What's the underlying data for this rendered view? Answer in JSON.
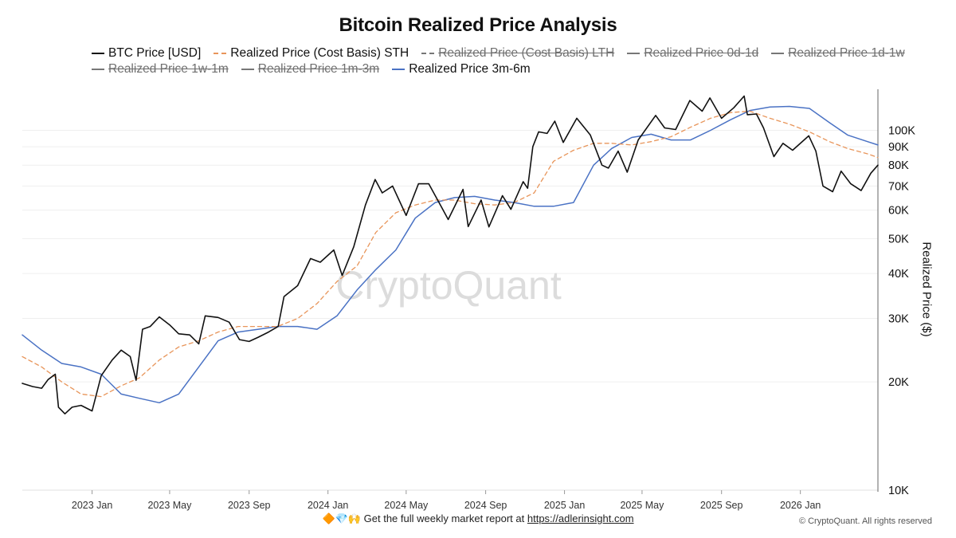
{
  "chart_data": {
    "type": "line",
    "title": "Bitcoin Realized Price Analysis",
    "ylabel": "Realized Price ($)",
    "yscale": "log",
    "ylim": [
      10000,
      130000
    ],
    "x_range": [
      "2022-09-15",
      "2026-03-05"
    ],
    "x_ticks": [
      {
        "date": "2023-01-01",
        "label": "2023 Jan"
      },
      {
        "date": "2023-05-01",
        "label": "2023 May"
      },
      {
        "date": "2023-09-01",
        "label": "2023 Sep"
      },
      {
        "date": "2024-01-01",
        "label": "2024 Jan"
      },
      {
        "date": "2024-05-01",
        "label": "2024 May"
      },
      {
        "date": "2024-09-01",
        "label": "2024 Sep"
      },
      {
        "date": "2025-01-01",
        "label": "2025 Jan"
      },
      {
        "date": "2025-05-01",
        "label": "2025 May"
      },
      {
        "date": "2025-09-01",
        "label": "2025 Sep"
      },
      {
        "date": "2026-01-01",
        "label": "2026 Jan"
      }
    ],
    "y_ticks": [
      {
        "value": 10000,
        "label": "10K"
      },
      {
        "value": 20000,
        "label": "20K"
      },
      {
        "value": 30000,
        "label": "30K"
      },
      {
        "value": 40000,
        "label": "40K"
      },
      {
        "value": 50000,
        "label": "50K"
      },
      {
        "value": 60000,
        "label": "60K"
      },
      {
        "value": 70000,
        "label": "70K"
      },
      {
        "value": 80000,
        "label": "80K"
      },
      {
        "value": 90000,
        "label": "90K"
      },
      {
        "value": 100000,
        "label": "100K"
      }
    ],
    "legend": [
      {
        "name": "BTC Price [USD]",
        "color": "#111111",
        "style": "solid",
        "visible": true
      },
      {
        "name": "Realized Price (Cost Basis) STH",
        "color": "#e8955a",
        "style": "dashed",
        "visible": true
      },
      {
        "name": "Realized Price (Cost Basis) LTH",
        "color": "#777777",
        "style": "dashed",
        "visible": false
      },
      {
        "name": "Realized Price 0d-1d",
        "color": "#777777",
        "style": "solid",
        "visible": false
      },
      {
        "name": "Realized Price 1d-1w",
        "color": "#777777",
        "style": "solid",
        "visible": false
      },
      {
        "name": "Realized Price 1w-1m",
        "color": "#777777",
        "style": "solid",
        "visible": false
      },
      {
        "name": "Realized Price 1m-3m",
        "color": "#777777",
        "style": "solid",
        "visible": false
      },
      {
        "name": "Realized Price 3m-6m",
        "color": "#4a72c4",
        "style": "solid",
        "visible": true
      }
    ],
    "series": [
      {
        "name": "BTC Price [USD]",
        "color": "#111111",
        "points": [
          [
            "2022-09-15",
            19800
          ],
          [
            "2022-10-01",
            19400
          ],
          [
            "2022-10-15",
            19200
          ],
          [
            "2022-10-25",
            20300
          ],
          [
            "2022-11-05",
            21000
          ],
          [
            "2022-11-10",
            17000
          ],
          [
            "2022-11-20",
            16300
          ],
          [
            "2022-12-01",
            17000
          ],
          [
            "2022-12-15",
            17200
          ],
          [
            "2023-01-01",
            16600
          ],
          [
            "2023-01-15",
            20800
          ],
          [
            "2023-02-01",
            23000
          ],
          [
            "2023-02-15",
            24500
          ],
          [
            "2023-03-01",
            23500
          ],
          [
            "2023-03-10",
            20200
          ],
          [
            "2023-03-20",
            28000
          ],
          [
            "2023-04-01",
            28500
          ],
          [
            "2023-04-15",
            30300
          ],
          [
            "2023-05-01",
            28800
          ],
          [
            "2023-05-15",
            27200
          ],
          [
            "2023-06-01",
            27000
          ],
          [
            "2023-06-15",
            25500
          ],
          [
            "2023-06-25",
            30500
          ],
          [
            "2023-07-15",
            30200
          ],
          [
            "2023-08-01",
            29300
          ],
          [
            "2023-08-17",
            26200
          ],
          [
            "2023-09-01",
            25900
          ],
          [
            "2023-09-15",
            26600
          ],
          [
            "2023-10-01",
            27500
          ],
          [
            "2023-10-16",
            28500
          ],
          [
            "2023-10-25",
            34500
          ],
          [
            "2023-11-15",
            37000
          ],
          [
            "2023-12-05",
            44000
          ],
          [
            "2023-12-20",
            43000
          ],
          [
            "2024-01-10",
            46500
          ],
          [
            "2024-01-23",
            39500
          ],
          [
            "2024-02-10",
            47500
          ],
          [
            "2024-02-28",
            62000
          ],
          [
            "2024-03-14",
            73000
          ],
          [
            "2024-03-25",
            67000
          ],
          [
            "2024-04-10",
            70000
          ],
          [
            "2024-04-20",
            64000
          ],
          [
            "2024-05-01",
            58000
          ],
          [
            "2024-05-20",
            71000
          ],
          [
            "2024-06-05",
            71000
          ],
          [
            "2024-06-25",
            61000
          ],
          [
            "2024-07-05",
            56500
          ],
          [
            "2024-07-28",
            68500
          ],
          [
            "2024-08-05",
            54000
          ],
          [
            "2024-08-25",
            64000
          ],
          [
            "2024-09-06",
            53900
          ],
          [
            "2024-09-27",
            65800
          ],
          [
            "2024-10-10",
            60300
          ],
          [
            "2024-10-29",
            72000
          ],
          [
            "2024-11-05",
            69000
          ],
          [
            "2024-11-13",
            90000
          ],
          [
            "2024-11-22",
            99000
          ],
          [
            "2024-12-05",
            98000
          ],
          [
            "2024-12-17",
            106000
          ],
          [
            "2024-12-30",
            92500
          ],
          [
            "2025-01-20",
            108000
          ],
          [
            "2025-02-10",
            97000
          ],
          [
            "2025-02-28",
            80000
          ],
          [
            "2025-03-10",
            78500
          ],
          [
            "2025-03-25",
            87500
          ],
          [
            "2025-04-08",
            76500
          ],
          [
            "2025-04-25",
            94000
          ],
          [
            "2025-05-22",
            110000
          ],
          [
            "2025-06-05",
            101500
          ],
          [
            "2025-06-22",
            100500
          ],
          [
            "2025-07-14",
            121000
          ],
          [
            "2025-08-02",
            113000
          ],
          [
            "2025-08-14",
            123000
          ],
          [
            "2025-09-01",
            108000
          ],
          [
            "2025-09-20",
            115500
          ],
          [
            "2025-10-06",
            124500
          ],
          [
            "2025-10-11",
            110500
          ],
          [
            "2025-10-25",
            111000
          ],
          [
            "2025-11-05",
            101500
          ],
          [
            "2025-11-21",
            84500
          ],
          [
            "2025-12-05",
            92000
          ],
          [
            "2025-12-20",
            88000
          ],
          [
            "2026-01-14",
            96500
          ],
          [
            "2026-01-25",
            87500
          ],
          [
            "2026-02-05",
            70000
          ],
          [
            "2026-02-20",
            67500
          ],
          [
            "2026-03-05",
            77000
          ],
          [
            "2026-03-20",
            71000
          ],
          [
            "2026-04-05",
            68000
          ],
          [
            "2026-04-20",
            76000
          ],
          [
            "2026-05-01",
            80000
          ]
        ]
      },
      {
        "name": "Realized Price (Cost Basis) STH",
        "color": "#e8955a",
        "points": [
          [
            "2022-09-15",
            23500
          ],
          [
            "2022-10-15",
            22000
          ],
          [
            "2022-11-15",
            20000
          ],
          [
            "2022-12-15",
            18500
          ],
          [
            "2023-01-15",
            18200
          ],
          [
            "2023-02-15",
            19500
          ],
          [
            "2023-03-15",
            20500
          ],
          [
            "2023-04-15",
            23000
          ],
          [
            "2023-05-15",
            25000
          ],
          [
            "2023-06-15",
            26000
          ],
          [
            "2023-07-15",
            27500
          ],
          [
            "2023-08-15",
            28500
          ],
          [
            "2023-09-15",
            28500
          ],
          [
            "2023-10-15",
            28500
          ],
          [
            "2023-11-15",
            30000
          ],
          [
            "2023-12-15",
            33000
          ],
          [
            "2024-01-15",
            38000
          ],
          [
            "2024-02-15",
            42000
          ],
          [
            "2024-03-15",
            52000
          ],
          [
            "2024-04-15",
            59000
          ],
          [
            "2024-05-15",
            62000
          ],
          [
            "2024-06-15",
            64000
          ],
          [
            "2024-07-15",
            64000
          ],
          [
            "2024-08-15",
            62500
          ],
          [
            "2024-09-15",
            62000
          ],
          [
            "2024-10-15",
            63000
          ],
          [
            "2024-11-15",
            67000
          ],
          [
            "2024-12-15",
            82000
          ],
          [
            "2025-01-15",
            88000
          ],
          [
            "2025-02-15",
            92000
          ],
          [
            "2025-03-15",
            92000
          ],
          [
            "2025-04-15",
            91000
          ],
          [
            "2025-05-15",
            93000
          ],
          [
            "2025-06-15",
            96000
          ],
          [
            "2025-07-15",
            102000
          ],
          [
            "2025-08-15",
            108000
          ],
          [
            "2025-09-15",
            112000
          ],
          [
            "2025-10-15",
            113000
          ],
          [
            "2025-11-15",
            108000
          ],
          [
            "2025-12-15",
            104000
          ],
          [
            "2026-01-15",
            99000
          ],
          [
            "2026-02-15",
            93000
          ],
          [
            "2026-03-15",
            89000
          ],
          [
            "2026-04-15",
            86000
          ],
          [
            "2026-05-01",
            84000
          ]
        ]
      },
      {
        "name": "Realized Price 3m-6m",
        "color": "#4a72c4",
        "points": [
          [
            "2022-09-15",
            27000
          ],
          [
            "2022-10-15",
            24500
          ],
          [
            "2022-11-15",
            22500
          ],
          [
            "2022-12-15",
            22000
          ],
          [
            "2023-01-15",
            21000
          ],
          [
            "2023-02-15",
            18500
          ],
          [
            "2023-03-15",
            18000
          ],
          [
            "2023-04-15",
            17500
          ],
          [
            "2023-05-15",
            18500
          ],
          [
            "2023-06-15",
            22000
          ],
          [
            "2023-07-15",
            26000
          ],
          [
            "2023-08-15",
            27500
          ],
          [
            "2023-09-15",
            28000
          ],
          [
            "2023-10-15",
            28500
          ],
          [
            "2023-11-15",
            28500
          ],
          [
            "2023-12-15",
            28000
          ],
          [
            "2024-01-15",
            30500
          ],
          [
            "2024-02-15",
            36000
          ],
          [
            "2024-03-15",
            41000
          ],
          [
            "2024-04-15",
            46500
          ],
          [
            "2024-05-15",
            57000
          ],
          [
            "2024-06-15",
            63000
          ],
          [
            "2024-07-15",
            65000
          ],
          [
            "2024-08-15",
            65500
          ],
          [
            "2024-09-15",
            64000
          ],
          [
            "2024-10-15",
            63000
          ],
          [
            "2024-11-15",
            61500
          ],
          [
            "2024-12-15",
            61500
          ],
          [
            "2025-01-15",
            63000
          ],
          [
            "2025-02-15",
            80000
          ],
          [
            "2025-03-15",
            89000
          ],
          [
            "2025-04-15",
            95500
          ],
          [
            "2025-05-15",
            97500
          ],
          [
            "2025-06-15",
            94000
          ],
          [
            "2025-07-15",
            94000
          ],
          [
            "2025-08-15",
            100000
          ],
          [
            "2025-09-15",
            107000
          ],
          [
            "2025-10-15",
            113500
          ],
          [
            "2025-11-15",
            116000
          ],
          [
            "2025-12-15",
            116500
          ],
          [
            "2026-01-15",
            115000
          ],
          [
            "2026-02-15",
            105000
          ],
          [
            "2026-03-15",
            97000
          ],
          [
            "2026-04-15",
            93000
          ],
          [
            "2026-05-01",
            91000
          ]
        ]
      }
    ],
    "watermark": "CryptoQuant"
  },
  "footer": {
    "emojis": "🔶💎🙌",
    "text": "Get the full weekly market report at",
    "link": "https://adlerinsight.com"
  },
  "copyright": "© CryptoQuant. All rights reserved"
}
